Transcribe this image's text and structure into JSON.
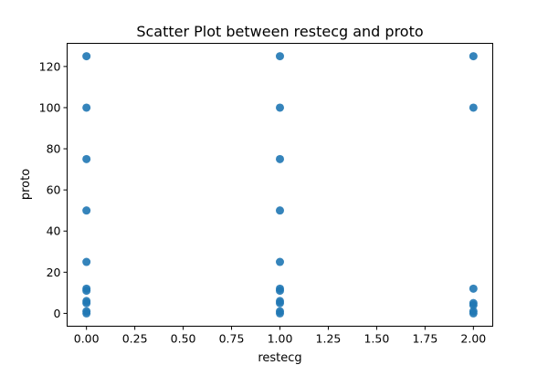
{
  "chart_data": {
    "type": "scatter",
    "title": "Scatter Plot between restecg and proto",
    "xlabel": "restecg",
    "ylabel": "proto",
    "xlim": [
      -0.1,
      2.1
    ],
    "ylim": [
      -6.25,
      131.25
    ],
    "xticks": [
      0.0,
      0.25,
      0.5,
      0.75,
      1.0,
      1.25,
      1.5,
      1.75,
      2.0
    ],
    "xtick_labels": [
      "0.00",
      "0.25",
      "0.50",
      "0.75",
      "1.00",
      "1.25",
      "1.50",
      "1.75",
      "2.00"
    ],
    "yticks": [
      0,
      20,
      40,
      60,
      80,
      100,
      120
    ],
    "ytick_labels": [
      "0",
      "20",
      "40",
      "60",
      "80",
      "100",
      "120"
    ],
    "grid": false,
    "marker_color": "#1f77b4",
    "points": [
      {
        "x": 0,
        "y": 125
      },
      {
        "x": 0,
        "y": 100
      },
      {
        "x": 0,
        "y": 75
      },
      {
        "x": 0,
        "y": 50
      },
      {
        "x": 0,
        "y": 25
      },
      {
        "x": 0,
        "y": 12
      },
      {
        "x": 0,
        "y": 11
      },
      {
        "x": 0,
        "y": 6
      },
      {
        "x": 0,
        "y": 5
      },
      {
        "x": 0,
        "y": 1
      },
      {
        "x": 0,
        "y": 0
      },
      {
        "x": 1,
        "y": 125
      },
      {
        "x": 1,
        "y": 100
      },
      {
        "x": 1,
        "y": 75
      },
      {
        "x": 1,
        "y": 50
      },
      {
        "x": 1,
        "y": 25
      },
      {
        "x": 1,
        "y": 12
      },
      {
        "x": 1,
        "y": 11
      },
      {
        "x": 1,
        "y": 6
      },
      {
        "x": 1,
        "y": 5
      },
      {
        "x": 1,
        "y": 1
      },
      {
        "x": 1,
        "y": 0
      },
      {
        "x": 2,
        "y": 125
      },
      {
        "x": 2,
        "y": 100
      },
      {
        "x": 2,
        "y": 12
      },
      {
        "x": 2,
        "y": 5
      },
      {
        "x": 2,
        "y": 4
      },
      {
        "x": 2,
        "y": 1
      },
      {
        "x": 2,
        "y": 0
      }
    ]
  }
}
